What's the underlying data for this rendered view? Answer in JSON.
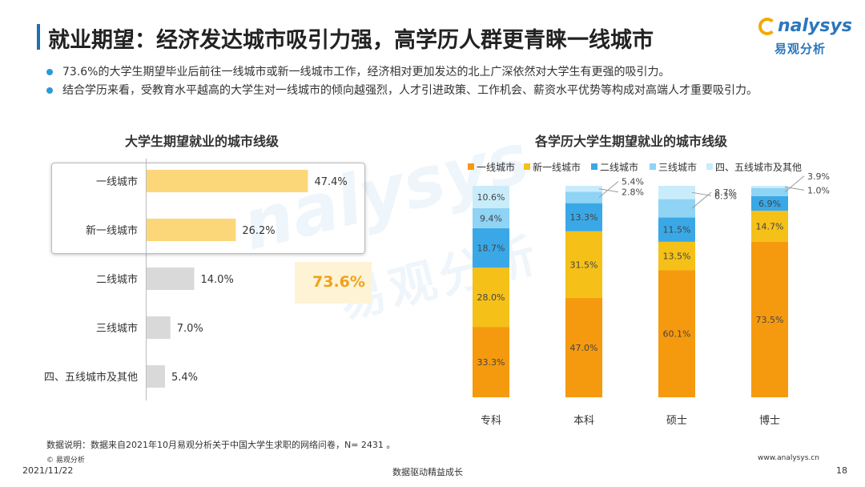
{
  "header": {
    "title": "就业期望：经济发达城市吸引力强，高学历人群更青睐一线城市",
    "logo_en": "nalysys",
    "logo_cn": "易观分析"
  },
  "bullets": [
    "73.6%的大学生期望毕业后前往一线城市或新一线城市工作，经济相对更加发达的北上广深依然对大学生有更强的吸引力。",
    "结合学历来看，受教育水平越高的大学生对一线城市的倾向越强烈，人才引进政策、工作机会、薪资水平优势等构成对高端人才重要吸引力。"
  ],
  "callout": "73.6%",
  "watermark": {
    "en": "nalysys",
    "cn": "易观分析"
  },
  "footer": {
    "note": "数据说明：数据来自2021年10月易观分析关于中国大学生求职的网络问卷，N= 2431 。",
    "copyright": "© 易观分析",
    "date": "2021/11/22",
    "slogan": "数据驱动精益成长",
    "site": "www.analysys.cn",
    "page": "18"
  },
  "colors": {
    "highlight_bar": "#fcd77a",
    "gray_bar": "#d9d9d9",
    "tier1": "#f59a0f",
    "new_tier1": "#f5c018",
    "tier2": "#3aa8e6",
    "tier3": "#8fd3f5",
    "tier45": "#c9ecfb"
  },
  "chart_data": [
    {
      "type": "bar",
      "orientation": "horizontal",
      "title": "大学生期望就业的城市线级",
      "categories": [
        "一线城市",
        "新一线城市",
        "二线城市",
        "三线城市",
        "四、五线城市及其他"
      ],
      "values": [
        47.4,
        26.2,
        14.0,
        7.0,
        5.4
      ],
      "labels": [
        "47.4%",
        "26.2%",
        "14.0%",
        "7.0%",
        "5.4%"
      ],
      "highlighted": [
        true,
        true,
        false,
        false,
        false
      ],
      "xlim": [
        0,
        100
      ]
    },
    {
      "type": "bar",
      "stacked": true,
      "title": "各学历大学生期望就业的城市线级",
      "categories": [
        "专科",
        "本科",
        "硕士",
        "博士"
      ],
      "legend_position": "top",
      "series": [
        {
          "name": "一线城市",
          "values": [
            33.3,
            47.0,
            60.1,
            73.5
          ],
          "labels": [
            "33.3%",
            "47.0%",
            "60.1%",
            "73.5%"
          ]
        },
        {
          "name": "新一线城市",
          "values": [
            28.0,
            31.5,
            13.5,
            14.7
          ],
          "labels": [
            "28.0%",
            "31.5%",
            "13.5%",
            "14.7%"
          ]
        },
        {
          "name": "二线城市",
          "values": [
            18.7,
            13.3,
            11.5,
            6.9
          ],
          "labels": [
            "18.7%",
            "13.3%",
            "11.5%",
            "6.9%"
          ]
        },
        {
          "name": "三线城市",
          "values": [
            9.4,
            5.4,
            8.7,
            3.9
          ],
          "labels": [
            "9.4%",
            "5.4%",
            "8.7%",
            "3.9%"
          ]
        },
        {
          "name": "四、五线城市及其他",
          "values": [
            10.6,
            2.8,
            6.3,
            1.0
          ],
          "labels": [
            "10.6%",
            "2.8%",
            "6.3%",
            "1.0%"
          ]
        }
      ],
      "ylim": [
        0,
        100
      ]
    }
  ]
}
